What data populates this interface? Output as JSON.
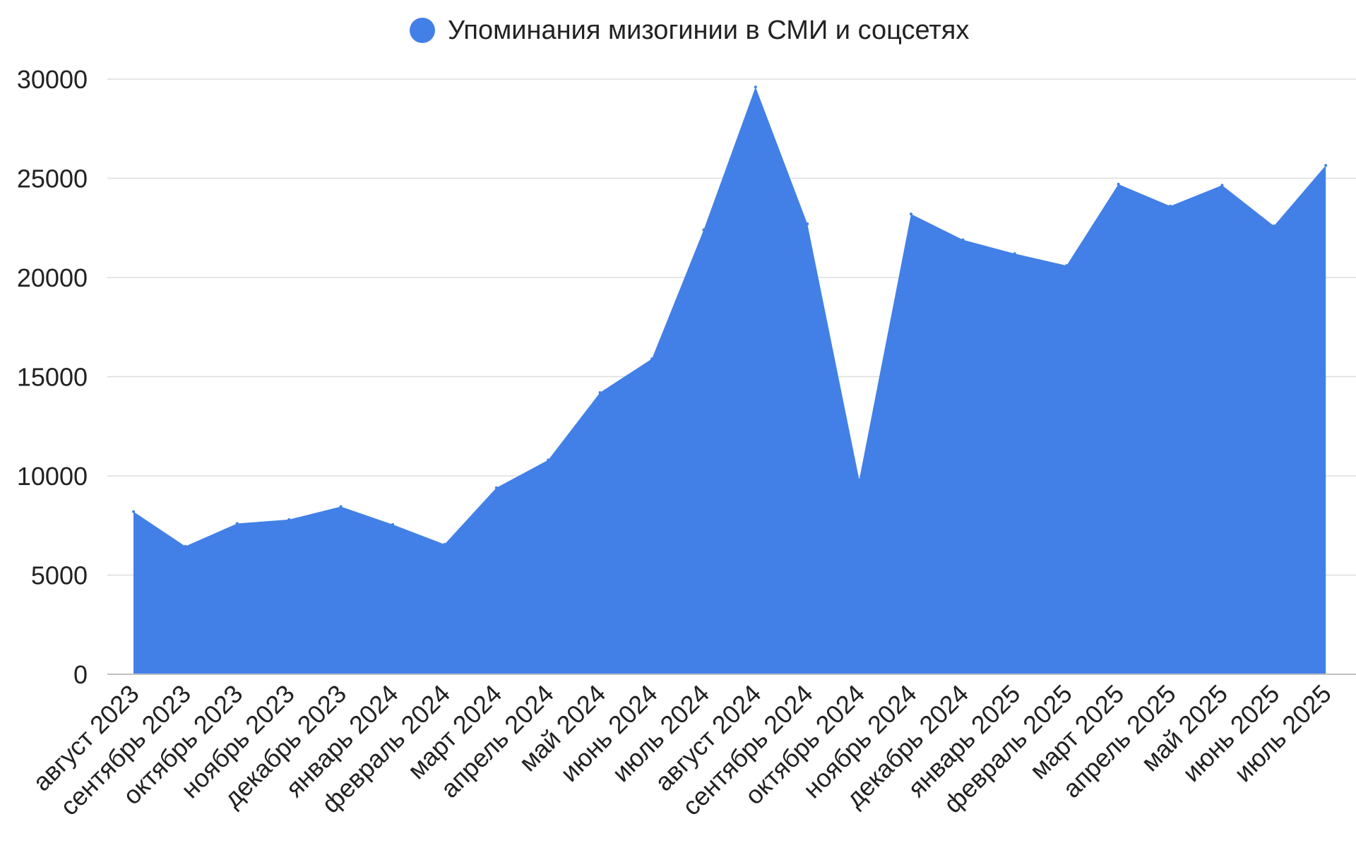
{
  "chart_data": {
    "type": "area",
    "legend": {
      "position": "top-center"
    },
    "series": [
      {
        "name": "Упоминания мизогинии в СМИ и соцсетях",
        "color": "#4280e7",
        "values": [
          8200,
          6450,
          7600,
          7800,
          8450,
          7550,
          6550,
          9400,
          10800,
          14200,
          15900,
          22400,
          29600,
          22700,
          9800,
          23200,
          21900,
          21200,
          20600,
          24700,
          23600,
          24650,
          22600,
          25650
        ]
      }
    ],
    "categories": [
      "август 2023",
      "сентябрь 2023",
      "октябрь 2023",
      "ноябрь 2023",
      "декабрь 2023",
      "январь 2024",
      "февраль 2024",
      "март 2024",
      "апрель 2024",
      "май 2024",
      "июнь 2024",
      "июль 2024",
      "август 2024",
      "сентябрь 2024",
      "октябрь 2024",
      "ноябрь 2024",
      "декабрь 2024",
      "январь 2025",
      "февраль 2025",
      "март 2025",
      "апрель 2025",
      "май 2025",
      "июнь 2025",
      "июль 2025"
    ],
    "ylim": [
      0,
      30000
    ],
    "yticks": [
      "0",
      "5000",
      "10000",
      "15000",
      "20000",
      "25000",
      "30000"
    ],
    "grid": true,
    "title": "",
    "xlabel": "",
    "ylabel": ""
  }
}
